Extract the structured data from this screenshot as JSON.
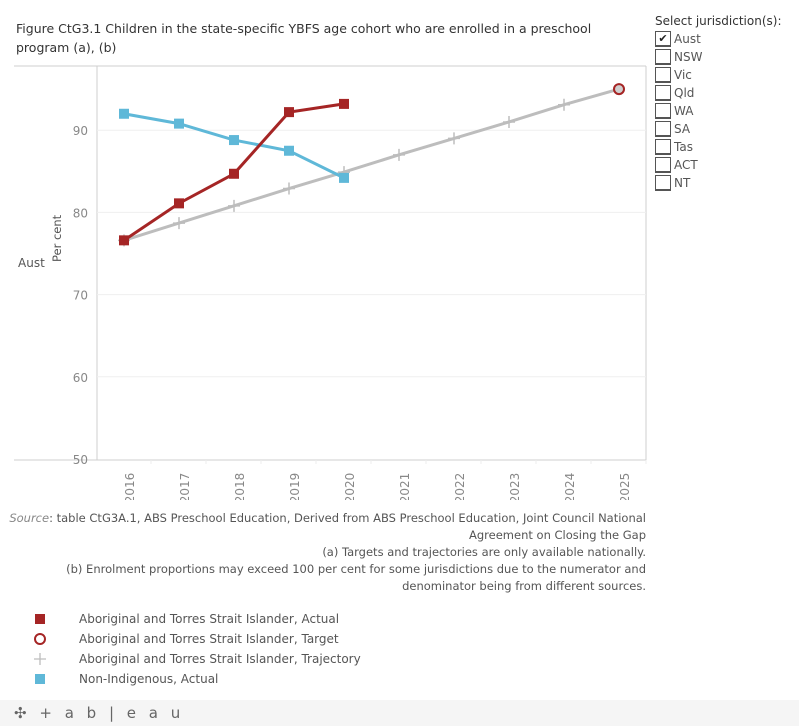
{
  "title": "Figure CtG3.1 Children in the state-specific YBFS age cohort who are enrolled in a preschool program (a), (b)",
  "filter": {
    "title": "Select jurisdiction(s):",
    "items": [
      {
        "label": "Aust",
        "checked": true
      },
      {
        "label": "NSW",
        "checked": false
      },
      {
        "label": "Vic",
        "checked": false
      },
      {
        "label": "Qld",
        "checked": false
      },
      {
        "label": "WA",
        "checked": false
      },
      {
        "label": "SA",
        "checked": false
      },
      {
        "label": "Tas",
        "checked": false
      },
      {
        "label": "ACT",
        "checked": false
      },
      {
        "label": "NT",
        "checked": false
      }
    ]
  },
  "row_label": "Aust",
  "chart_data": {
    "type": "line",
    "title": "Figure CtG3.1 Children in the state-specific YBFS age cohort who are enrolled in a preschool program (a), (b)",
    "xlabel": "",
    "ylabel": "Per cent",
    "x": [
      "2016",
      "2017",
      "2018",
      "2019",
      "2020",
      "2021",
      "2022",
      "2023",
      "2024",
      "2025"
    ],
    "ylim": [
      50,
      97
    ],
    "yticks": [
      50,
      60,
      70,
      80,
      90
    ],
    "grid": true,
    "legend_position": "bottom-left",
    "series": [
      {
        "name": "Aboriginal and Torres Strait Islander, Trajectory",
        "color": "#bdbdbd",
        "marker": "plus",
        "values": [
          76.6,
          78.7,
          80.8,
          82.9,
          84.9,
          87.0,
          89.0,
          91.0,
          93.1,
          95.0
        ]
      },
      {
        "name": "Non-Indigenous, Actual",
        "color": "#5fb8d8",
        "marker": "square",
        "values": [
          92.0,
          90.8,
          88.8,
          87.5,
          84.2,
          null,
          null,
          null,
          null,
          null
        ]
      },
      {
        "name": "Aboriginal and Torres Strait Islander, Actual",
        "color": "#a52525",
        "marker": "square",
        "values": [
          76.6,
          81.1,
          84.7,
          92.2,
          93.2,
          null,
          null,
          null,
          null,
          null
        ]
      },
      {
        "name": "Aboriginal and Torres Strait Islander, Target",
        "color": "#a52525",
        "marker": "circle-open",
        "values": [
          null,
          null,
          null,
          null,
          null,
          null,
          null,
          null,
          null,
          95.0
        ]
      }
    ]
  },
  "footer": {
    "source_label": "Source",
    "source_text": ": table CtG3A.1, ABS Preschool Education, Derived from ABS Preschool Education, Joint Council National Agreement on Closing the Gap",
    "note_a": "(a) Targets and trajectories are only available nationally.",
    "note_b": "(b) Enrolment proportions may exceed 100 per cent for some jurisdictions due to the numerator and denominator being from different sources."
  },
  "legend": [
    {
      "label": "Aboriginal and Torres Strait Islander, Actual",
      "symbol": "square",
      "color": "#a52525"
    },
    {
      "label": "Aboriginal and Torres Strait Islander, Target",
      "symbol": "circle-open",
      "color": "#a52525"
    },
    {
      "label": "Aboriginal and Torres Strait Islander, Trajectory",
      "symbol": "plus",
      "color": "#bdbdbd"
    },
    {
      "label": "Non-Indigenous, Actual",
      "symbol": "square",
      "color": "#5fb8d8"
    }
  ],
  "tableau_logo": "+ a b | e a u"
}
